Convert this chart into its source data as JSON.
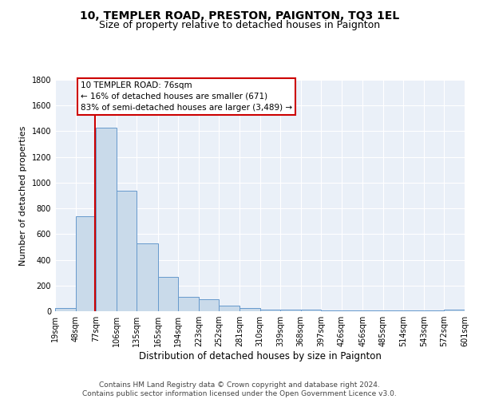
{
  "title": "10, TEMPLER ROAD, PRESTON, PAIGNTON, TQ3 1EL",
  "subtitle": "Size of property relative to detached houses in Paignton",
  "xlabel": "Distribution of detached houses by size in Paignton",
  "ylabel": "Number of detached properties",
  "bar_heights": [
    25,
    740,
    1430,
    935,
    530,
    265,
    110,
    95,
    45,
    25,
    15,
    10,
    10,
    5,
    5,
    5,
    5,
    5,
    5,
    15
  ],
  "bin_edges": [
    19,
    48,
    77,
    106,
    135,
    165,
    194,
    223,
    252,
    281,
    310,
    339,
    368,
    397,
    426,
    456,
    485,
    514,
    543,
    572,
    601
  ],
  "tick_labels": [
    "19sqm",
    "48sqm",
    "77sqm",
    "106sqm",
    "135sqm",
    "165sqm",
    "194sqm",
    "223sqm",
    "252sqm",
    "281sqm",
    "310sqm",
    "339sqm",
    "368sqm",
    "397sqm",
    "426sqm",
    "456sqm",
    "485sqm",
    "514sqm",
    "543sqm",
    "572sqm",
    "601sqm"
  ],
  "bar_color": "#c9daea",
  "bar_edge_color": "#6699cc",
  "background_color": "#eaf0f8",
  "grid_color": "#ffffff",
  "vline_x": 76,
  "vline_color": "#cc0000",
  "annotation_text": "10 TEMPLER ROAD: 76sqm\n← 16% of detached houses are smaller (671)\n83% of semi-detached houses are larger (3,489) →",
  "annotation_box_color": "#ffffff",
  "annotation_box_edge": "#cc0000",
  "ylim": [
    0,
    1800
  ],
  "yticks": [
    0,
    200,
    400,
    600,
    800,
    1000,
    1200,
    1400,
    1600,
    1800
  ],
  "footer_text": "Contains HM Land Registry data © Crown copyright and database right 2024.\nContains public sector information licensed under the Open Government Licence v3.0.",
  "title_fontsize": 10,
  "subtitle_fontsize": 9,
  "xlabel_fontsize": 8.5,
  "ylabel_fontsize": 8,
  "tick_fontsize": 7,
  "annotation_fontsize": 7.5,
  "footer_fontsize": 6.5
}
